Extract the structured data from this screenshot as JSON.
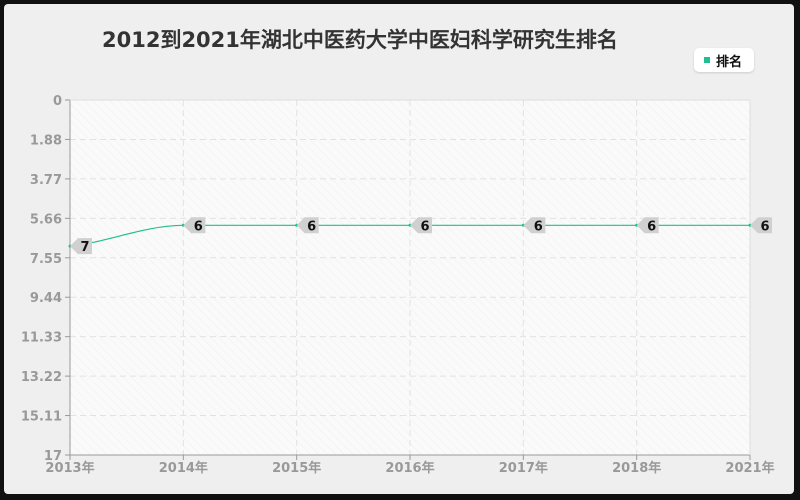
{
  "chart_data": {
    "type": "line",
    "title": "2012到2021年湖北中医药大学中医妇科学研究生排名",
    "categories": [
      "2013年",
      "2014年",
      "2015年",
      "2016年",
      "2017年",
      "2018年",
      "2021年"
    ],
    "series": [
      {
        "name": "排名",
        "values": [
          7,
          6,
          6,
          6,
          6,
          6,
          6
        ],
        "color": "#1fbf8f"
      }
    ],
    "y_ticks": [
      "0",
      "1.88",
      "3.77",
      "5.66",
      "7.55",
      "9.44",
      "11.33",
      "13.22",
      "15.11",
      "17"
    ],
    "ylim": [
      0,
      17
    ],
    "y_inverted": true,
    "grid": true,
    "legend_position": "top-right"
  }
}
